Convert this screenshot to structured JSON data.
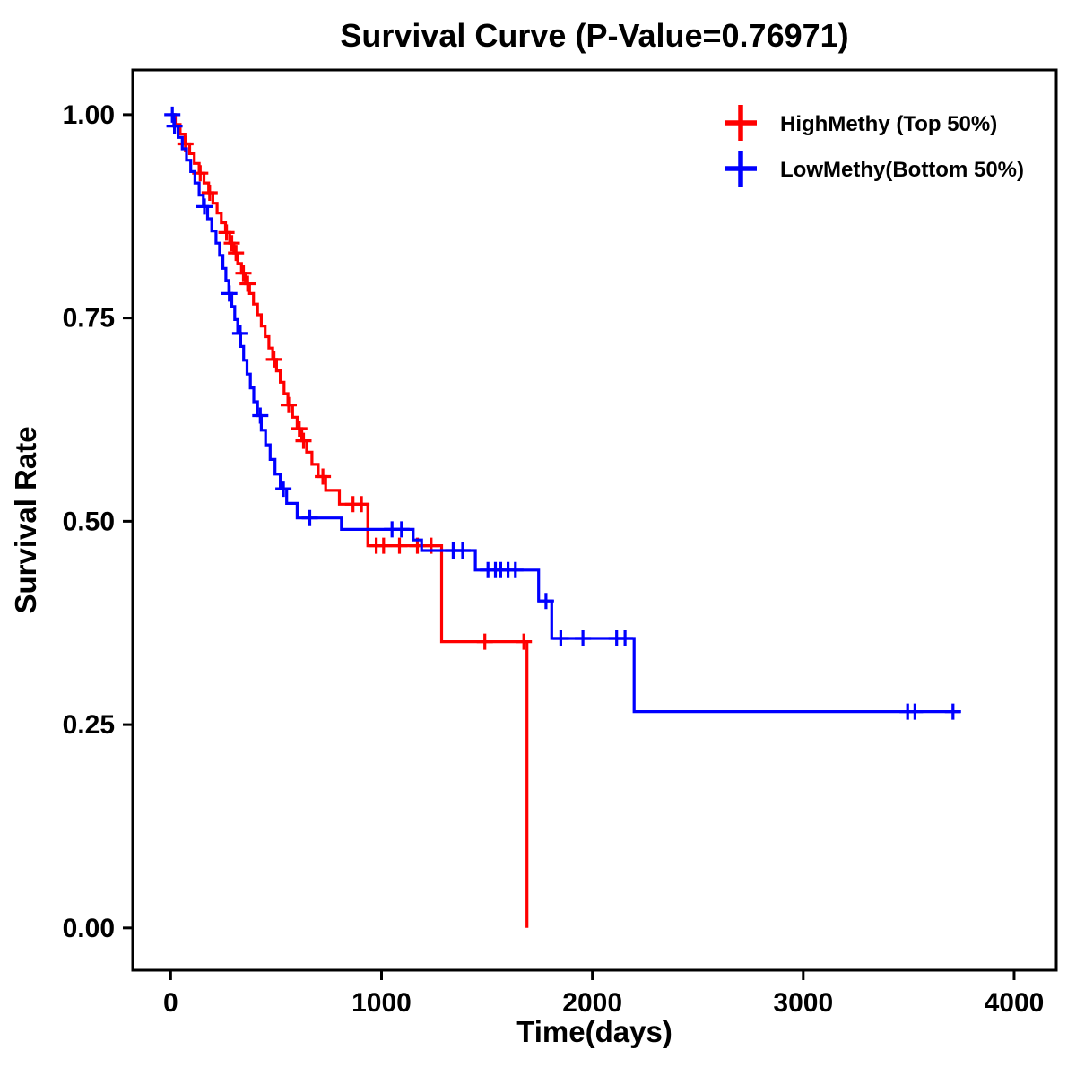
{
  "chart_data": {
    "type": "line",
    "subtype": "kaplan-meier-step",
    "title": "Survival Curve (P-Value=0.76971)",
    "p_value": "0.76971",
    "xlabel": "Time(days)",
    "ylabel": "Survival Rate",
    "xlim": [
      -180,
      4200
    ],
    "ylim": [
      -0.052,
      1.055
    ],
    "xticks": [
      0,
      1000,
      2000,
      3000,
      4000
    ],
    "xtick_labels": [
      "0",
      "1000",
      "2000",
      "3000",
      "4000"
    ],
    "yticks": [
      0,
      0.25,
      0.5,
      0.75,
      1
    ],
    "ytick_labels": [
      "0.00",
      "0.25",
      "0.50",
      "0.75",
      "1.00"
    ],
    "grid": false,
    "legend_position": "top-right",
    "series": [
      {
        "name": "HighMethy (Top 50%)",
        "color": "#FF0000",
        "steps": [
          [
            0,
            1.0
          ],
          [
            22,
            0.988
          ],
          [
            45,
            0.976
          ],
          [
            68,
            0.964
          ],
          [
            90,
            0.952
          ],
          [
            112,
            0.94
          ],
          [
            135,
            0.928
          ],
          [
            158,
            0.916
          ],
          [
            180,
            0.904
          ],
          [
            200,
            0.891
          ],
          [
            220,
            0.879
          ],
          [
            240,
            0.867
          ],
          [
            260,
            0.855
          ],
          [
            280,
            0.842
          ],
          [
            300,
            0.83
          ],
          [
            318,
            0.817
          ],
          [
            336,
            0.805
          ],
          [
            355,
            0.792
          ],
          [
            374,
            0.78
          ],
          [
            393,
            0.767
          ],
          [
            412,
            0.754
          ],
          [
            430,
            0.74
          ],
          [
            448,
            0.727
          ],
          [
            466,
            0.713
          ],
          [
            484,
            0.699
          ],
          [
            502,
            0.685
          ],
          [
            520,
            0.671
          ],
          [
            538,
            0.657
          ],
          [
            556,
            0.643
          ],
          [
            578,
            0.628
          ],
          [
            600,
            0.614
          ],
          [
            622,
            0.599
          ],
          [
            645,
            0.585
          ],
          [
            670,
            0.57
          ],
          [
            700,
            0.555
          ],
          [
            735,
            0.538
          ],
          [
            800,
            0.521
          ],
          [
            935,
            0.47
          ],
          [
            1285,
            0.352
          ],
          [
            1690,
            0.0
          ]
        ],
        "censor_marks": [
          [
            70,
            0.964
          ],
          [
            140,
            0.928
          ],
          [
            185,
            0.904
          ],
          [
            265,
            0.855
          ],
          [
            290,
            0.842
          ],
          [
            310,
            0.83
          ],
          [
            345,
            0.805
          ],
          [
            365,
            0.792
          ],
          [
            490,
            0.699
          ],
          [
            560,
            0.643
          ],
          [
            610,
            0.614
          ],
          [
            630,
            0.599
          ],
          [
            722,
            0.555
          ],
          [
            865,
            0.521
          ],
          [
            905,
            0.521
          ],
          [
            975,
            0.47
          ],
          [
            1010,
            0.47
          ],
          [
            1085,
            0.47
          ],
          [
            1170,
            0.47
          ],
          [
            1235,
            0.47
          ],
          [
            1490,
            0.352
          ],
          [
            1675,
            0.352
          ]
        ]
      },
      {
        "name": "LowMethy(Bottom 50%)",
        "color": "#0000FF",
        "steps": [
          [
            0,
            1.0
          ],
          [
            15,
            0.986
          ],
          [
            35,
            0.972
          ],
          [
            55,
            0.958
          ],
          [
            75,
            0.944
          ],
          [
            95,
            0.93
          ],
          [
            115,
            0.916
          ],
          [
            135,
            0.901
          ],
          [
            155,
            0.887
          ],
          [
            175,
            0.872
          ],
          [
            195,
            0.857
          ],
          [
            215,
            0.842
          ],
          [
            232,
            0.827
          ],
          [
            248,
            0.811
          ],
          [
            262,
            0.796
          ],
          [
            276,
            0.78
          ],
          [
            290,
            0.764
          ],
          [
            304,
            0.748
          ],
          [
            318,
            0.731
          ],
          [
            332,
            0.715
          ],
          [
            346,
            0.698
          ],
          [
            362,
            0.681
          ],
          [
            378,
            0.664
          ],
          [
            394,
            0.647
          ],
          [
            412,
            0.63
          ],
          [
            430,
            0.612
          ],
          [
            450,
            0.594
          ],
          [
            472,
            0.576
          ],
          [
            495,
            0.558
          ],
          [
            520,
            0.54
          ],
          [
            550,
            0.522
          ],
          [
            600,
            0.504
          ],
          [
            810,
            0.49
          ],
          [
            1150,
            0.477
          ],
          [
            1190,
            0.464
          ],
          [
            1445,
            0.44
          ],
          [
            1745,
            0.402
          ],
          [
            1807,
            0.356
          ],
          [
            2198,
            0.266
          ],
          [
            3745,
            0.266
          ]
        ],
        "censor_marks": [
          [
            8,
            1.0
          ],
          [
            18,
            0.986
          ],
          [
            160,
            0.887
          ],
          [
            278,
            0.78
          ],
          [
            330,
            0.731
          ],
          [
            425,
            0.63
          ],
          [
            535,
            0.54
          ],
          [
            660,
            0.504
          ],
          [
            1050,
            0.49
          ],
          [
            1095,
            0.49
          ],
          [
            1340,
            0.464
          ],
          [
            1385,
            0.464
          ],
          [
            1505,
            0.44
          ],
          [
            1540,
            0.44
          ],
          [
            1565,
            0.44
          ],
          [
            1600,
            0.44
          ],
          [
            1635,
            0.44
          ],
          [
            1780,
            0.402
          ],
          [
            1850,
            0.356
          ],
          [
            1955,
            0.356
          ],
          [
            2115,
            0.356
          ],
          [
            2155,
            0.356
          ],
          [
            3495,
            0.266
          ],
          [
            3530,
            0.266
          ],
          [
            3710,
            0.266
          ]
        ]
      }
    ]
  }
}
